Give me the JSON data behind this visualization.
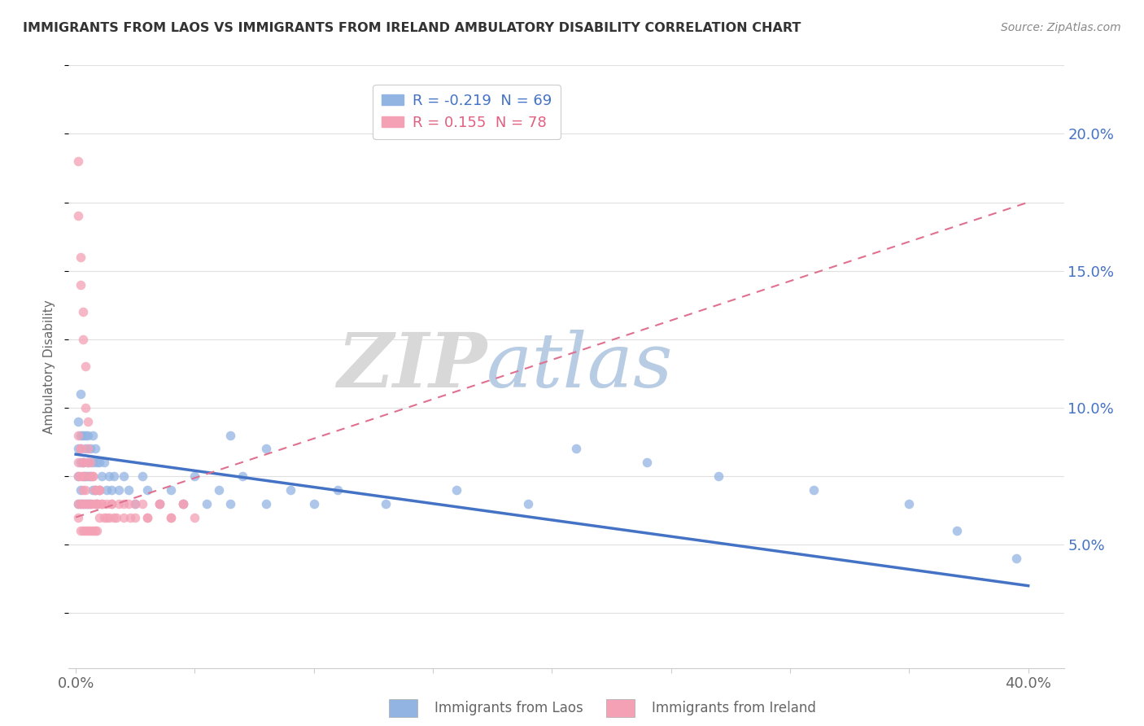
{
  "title": "IMMIGRANTS FROM LAOS VS IMMIGRANTS FROM IRELAND AMBULATORY DISABILITY CORRELATION CHART",
  "source": "Source: ZipAtlas.com",
  "ylabel": "Ambulatory Disability",
  "y_ticks_right": [
    0.05,
    0.1,
    0.15,
    0.2
  ],
  "y_tick_labels_right": [
    "5.0%",
    "10.0%",
    "15.0%",
    "20.0%"
  ],
  "y_lim": [
    0.005,
    0.225
  ],
  "x_lim": [
    -0.003,
    0.415
  ],
  "color_laos": "#92b4e3",
  "color_ireland": "#f4a0b5",
  "color_laos_line": "#4472c4",
  "color_ireland_line": "#e07090",
  "legend_laos_R": "-0.219",
  "legend_laos_N": "69",
  "legend_ireland_R": "0.155",
  "legend_ireland_N": "78",
  "laos_trend_x0": 0.0,
  "laos_trend_y0": 0.083,
  "laos_trend_x1": 0.4,
  "laos_trend_y1": 0.035,
  "ireland_trend_x0": 0.0,
  "ireland_trend_y0": 0.06,
  "ireland_trend_x1": 0.4,
  "ireland_trend_y1": 0.175,
  "laos_x": [
    0.001,
    0.001,
    0.001,
    0.001,
    0.002,
    0.002,
    0.002,
    0.002,
    0.002,
    0.003,
    0.003,
    0.003,
    0.003,
    0.004,
    0.004,
    0.004,
    0.004,
    0.005,
    0.005,
    0.005,
    0.005,
    0.006,
    0.006,
    0.006,
    0.007,
    0.007,
    0.007,
    0.008,
    0.008,
    0.009,
    0.009,
    0.01,
    0.01,
    0.011,
    0.012,
    0.013,
    0.014,
    0.015,
    0.016,
    0.018,
    0.02,
    0.022,
    0.025,
    0.028,
    0.03,
    0.035,
    0.04,
    0.045,
    0.05,
    0.055,
    0.06,
    0.065,
    0.07,
    0.08,
    0.09,
    0.1,
    0.11,
    0.13,
    0.16,
    0.19,
    0.21,
    0.24,
    0.27,
    0.31,
    0.35,
    0.37,
    0.395,
    0.065,
    0.08
  ],
  "laos_y": [
    0.085,
    0.095,
    0.075,
    0.065,
    0.09,
    0.08,
    0.07,
    0.065,
    0.105,
    0.09,
    0.08,
    0.075,
    0.065,
    0.09,
    0.085,
    0.075,
    0.065,
    0.09,
    0.08,
    0.075,
    0.065,
    0.085,
    0.075,
    0.065,
    0.09,
    0.08,
    0.07,
    0.085,
    0.07,
    0.08,
    0.065,
    0.08,
    0.07,
    0.075,
    0.08,
    0.07,
    0.075,
    0.07,
    0.075,
    0.07,
    0.075,
    0.07,
    0.065,
    0.075,
    0.07,
    0.065,
    0.07,
    0.065,
    0.075,
    0.065,
    0.07,
    0.065,
    0.075,
    0.065,
    0.07,
    0.065,
    0.07,
    0.065,
    0.07,
    0.065,
    0.085,
    0.08,
    0.075,
    0.07,
    0.065,
    0.055,
    0.045,
    0.09,
    0.085
  ],
  "ireland_x": [
    0.001,
    0.001,
    0.001,
    0.001,
    0.002,
    0.002,
    0.002,
    0.002,
    0.003,
    0.003,
    0.003,
    0.003,
    0.004,
    0.004,
    0.004,
    0.005,
    0.005,
    0.005,
    0.006,
    0.006,
    0.006,
    0.007,
    0.007,
    0.007,
    0.008,
    0.008,
    0.008,
    0.009,
    0.009,
    0.01,
    0.01,
    0.011,
    0.012,
    0.013,
    0.014,
    0.015,
    0.016,
    0.018,
    0.02,
    0.022,
    0.025,
    0.028,
    0.03,
    0.035,
    0.04,
    0.045,
    0.05,
    0.001,
    0.001,
    0.002,
    0.002,
    0.003,
    0.003,
    0.004,
    0.004,
    0.005,
    0.005,
    0.006,
    0.007,
    0.008,
    0.009,
    0.01,
    0.011,
    0.013,
    0.015,
    0.017,
    0.02,
    0.023,
    0.025,
    0.03,
    0.035,
    0.04,
    0.045,
    0.001,
    0.002,
    0.003,
    0.003,
    0.004
  ],
  "ireland_y": [
    0.08,
    0.075,
    0.065,
    0.06,
    0.085,
    0.075,
    0.065,
    0.055,
    0.08,
    0.07,
    0.065,
    0.055,
    0.075,
    0.065,
    0.055,
    0.08,
    0.065,
    0.055,
    0.075,
    0.065,
    0.055,
    0.075,
    0.065,
    0.055,
    0.07,
    0.065,
    0.055,
    0.065,
    0.055,
    0.07,
    0.06,
    0.065,
    0.06,
    0.065,
    0.06,
    0.065,
    0.06,
    0.065,
    0.06,
    0.065,
    0.06,
    0.065,
    0.06,
    0.065,
    0.06,
    0.065,
    0.06,
    0.19,
    0.17,
    0.155,
    0.145,
    0.135,
    0.125,
    0.115,
    0.1,
    0.095,
    0.085,
    0.08,
    0.075,
    0.07,
    0.065,
    0.07,
    0.065,
    0.06,
    0.065,
    0.06,
    0.065,
    0.06,
    0.065,
    0.06,
    0.065,
    0.06,
    0.065,
    0.09,
    0.085,
    0.08,
    0.075,
    0.07
  ],
  "watermark_zip": "ZIP",
  "watermark_atlas": "atlas",
  "background_color": "#ffffff",
  "grid_color": "#e0e0e0"
}
